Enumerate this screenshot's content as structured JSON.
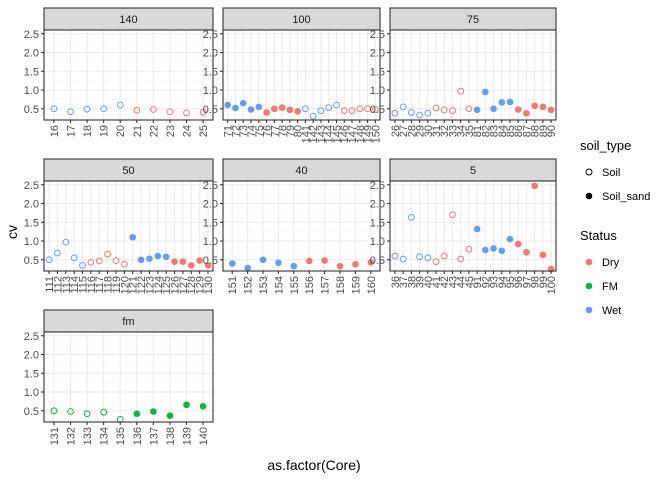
{
  "chart_data": {
    "type": "scatter",
    "xlabel": "as.factor(Core)",
    "ylabel": "cv",
    "ylim": [
      0.2,
      2.6
    ],
    "y_ticks": [
      "0.5",
      "1.0",
      "1.5",
      "2.0",
      "2.5"
    ],
    "grid": true,
    "legend_placement": "right",
    "legends": [
      {
        "title": "soil_type",
        "items": [
          {
            "label": "Soil",
            "shape": "open-circle"
          },
          {
            "label": "Soil_sand",
            "shape": "filled-circle"
          }
        ]
      },
      {
        "title": "Status",
        "items": [
          {
            "label": "Dry",
            "color": "#F8766D"
          },
          {
            "label": "FM",
            "color": "#00BA38"
          },
          {
            "label": "Wet",
            "color": "#619CFF"
          }
        ]
      }
    ],
    "colors": {
      "Dry": "#F8766D",
      "FM": "#00BA38",
      "Wet": "#619CFF"
    },
    "panels": [
      {
        "title": "140",
        "categories": [
          "16",
          "17",
          "18",
          "19",
          "20",
          "21",
          "22",
          "23",
          "24",
          "25"
        ],
        "points": [
          {
            "x": "16",
            "y": 0.5,
            "status": "Wet",
            "soil": "Soil"
          },
          {
            "x": "17",
            "y": 0.42,
            "status": "Wet",
            "soil": "Soil"
          },
          {
            "x": "18",
            "y": 0.49,
            "status": "Wet",
            "soil": "Soil"
          },
          {
            "x": "19",
            "y": 0.5,
            "status": "Wet",
            "soil": "Soil"
          },
          {
            "x": "20",
            "y": 0.6,
            "status": "Wet",
            "soil": "Soil"
          },
          {
            "x": "21",
            "y": 0.46,
            "status": "Dry",
            "soil": "Soil"
          },
          {
            "x": "22",
            "y": 0.48,
            "status": "Dry",
            "soil": "Soil"
          },
          {
            "x": "23",
            "y": 0.42,
            "status": "Dry",
            "soil": "Soil"
          },
          {
            "x": "24",
            "y": 0.39,
            "status": "Dry",
            "soil": "Soil"
          },
          {
            "x": "25",
            "y": 0.41,
            "status": "Dry",
            "soil": "Soil"
          }
        ]
      },
      {
        "title": "100",
        "categories": [
          "71",
          "72",
          "73",
          "74",
          "75",
          "76",
          "77",
          "78",
          "79",
          "80",
          "141",
          "142",
          "143",
          "144",
          "145",
          "146",
          "147",
          "148",
          "149",
          "150"
        ],
        "points": [
          {
            "x": "71",
            "y": 0.6,
            "status": "Wet",
            "soil": "Soil_sand"
          },
          {
            "x": "72",
            "y": 0.52,
            "status": "Wet",
            "soil": "Soil_sand"
          },
          {
            "x": "73",
            "y": 0.65,
            "status": "Wet",
            "soil": "Soil_sand"
          },
          {
            "x": "74",
            "y": 0.48,
            "status": "Wet",
            "soil": "Soil_sand"
          },
          {
            "x": "75",
            "y": 0.55,
            "status": "Wet",
            "soil": "Soil_sand"
          },
          {
            "x": "76",
            "y": 0.4,
            "status": "Dry",
            "soil": "Soil_sand"
          },
          {
            "x": "77",
            "y": 0.5,
            "status": "Dry",
            "soil": "Soil_sand"
          },
          {
            "x": "78",
            "y": 0.53,
            "status": "Dry",
            "soil": "Soil_sand"
          },
          {
            "x": "79",
            "y": 0.47,
            "status": "Dry",
            "soil": "Soil_sand"
          },
          {
            "x": "80",
            "y": 0.43,
            "status": "Dry",
            "soil": "Soil_sand"
          },
          {
            "x": "141",
            "y": 0.5,
            "status": "Wet",
            "soil": "Soil"
          },
          {
            "x": "142",
            "y": 0.3,
            "status": "Wet",
            "soil": "Soil"
          },
          {
            "x": "143",
            "y": 0.45,
            "status": "Wet",
            "soil": "Soil"
          },
          {
            "x": "144",
            "y": 0.53,
            "status": "Wet",
            "soil": "Soil"
          },
          {
            "x": "145",
            "y": 0.6,
            "status": "Wet",
            "soil": "Soil"
          },
          {
            "x": "146",
            "y": 0.45,
            "status": "Dry",
            "soil": "Soil"
          },
          {
            "x": "147",
            "y": 0.45,
            "status": "Dry",
            "soil": "Soil"
          },
          {
            "x": "148",
            "y": 0.5,
            "status": "Dry",
            "soil": "Soil"
          },
          {
            "x": "149",
            "y": 0.5,
            "status": "Dry",
            "soil": "Soil"
          },
          {
            "x": "150",
            "y": 0.48,
            "status": "Dry",
            "soil": "Soil"
          }
        ]
      },
      {
        "title": "75",
        "categories": [
          "26",
          "27",
          "28",
          "29",
          "30",
          "31",
          "32",
          "33",
          "34",
          "35",
          "81",
          "82",
          "83",
          "84",
          "85",
          "86",
          "87",
          "88",
          "89",
          "90"
        ],
        "points": [
          {
            "x": "26",
            "y": 0.38,
            "status": "Wet",
            "soil": "Soil"
          },
          {
            "x": "27",
            "y": 0.55,
            "status": "Wet",
            "soil": "Soil"
          },
          {
            "x": "28",
            "y": 0.4,
            "status": "Wet",
            "soil": "Soil"
          },
          {
            "x": "29",
            "y": 0.33,
            "status": "Wet",
            "soil": "Soil"
          },
          {
            "x": "30",
            "y": 0.38,
            "status": "Wet",
            "soil": "Soil"
          },
          {
            "x": "31",
            "y": 0.52,
            "status": "Dry",
            "soil": "Soil"
          },
          {
            "x": "32",
            "y": 0.47,
            "status": "Dry",
            "soil": "Soil"
          },
          {
            "x": "33",
            "y": 0.45,
            "status": "Dry",
            "soil": "Soil"
          },
          {
            "x": "34",
            "y": 0.97,
            "status": "Dry",
            "soil": "Soil"
          },
          {
            "x": "35",
            "y": 0.5,
            "status": "Dry",
            "soil": "Soil"
          },
          {
            "x": "81",
            "y": 0.47,
            "status": "Wet",
            "soil": "Soil_sand"
          },
          {
            "x": "82",
            "y": 0.95,
            "status": "Wet",
            "soil": "Soil_sand"
          },
          {
            "x": "83",
            "y": 0.5,
            "status": "Wet",
            "soil": "Soil_sand"
          },
          {
            "x": "84",
            "y": 0.67,
            "status": "Wet",
            "soil": "Soil_sand"
          },
          {
            "x": "85",
            "y": 0.68,
            "status": "Wet",
            "soil": "Soil_sand"
          },
          {
            "x": "86",
            "y": 0.48,
            "status": "Dry",
            "soil": "Soil_sand"
          },
          {
            "x": "87",
            "y": 0.38,
            "status": "Dry",
            "soil": "Soil_sand"
          },
          {
            "x": "88",
            "y": 0.58,
            "status": "Dry",
            "soil": "Soil_sand"
          },
          {
            "x": "89",
            "y": 0.55,
            "status": "Dry",
            "soil": "Soil_sand"
          },
          {
            "x": "90",
            "y": 0.47,
            "status": "Dry",
            "soil": "Soil_sand"
          }
        ]
      },
      {
        "title": "50",
        "categories": [
          "111",
          "112",
          "113",
          "114",
          "115",
          "116",
          "117",
          "118",
          "119",
          "120",
          "121",
          "122",
          "123",
          "124",
          "125",
          "126",
          "127",
          "128",
          "129",
          "130"
        ],
        "points": [
          {
            "x": "111",
            "y": 0.5,
            "status": "Wet",
            "soil": "Soil"
          },
          {
            "x": "112",
            "y": 0.68,
            "status": "Wet",
            "soil": "Soil"
          },
          {
            "x": "113",
            "y": 0.97,
            "status": "Wet",
            "soil": "Soil"
          },
          {
            "x": "114",
            "y": 0.55,
            "status": "Wet",
            "soil": "Soil"
          },
          {
            "x": "115",
            "y": 0.35,
            "status": "Wet",
            "soil": "Soil"
          },
          {
            "x": "116",
            "y": 0.43,
            "status": "Dry",
            "soil": "Soil"
          },
          {
            "x": "117",
            "y": 0.47,
            "status": "Dry",
            "soil": "Soil"
          },
          {
            "x": "118",
            "y": 0.65,
            "status": "Dry",
            "soil": "Soil"
          },
          {
            "x": "119",
            "y": 0.48,
            "status": "Dry",
            "soil": "Soil"
          },
          {
            "x": "120",
            "y": 0.38,
            "status": "Dry",
            "soil": "Soil"
          },
          {
            "x": "121",
            "y": 1.1,
            "status": "Wet",
            "soil": "Soil_sand"
          },
          {
            "x": "122",
            "y": 0.5,
            "status": "Wet",
            "soil": "Soil_sand"
          },
          {
            "x": "123",
            "y": 0.53,
            "status": "Wet",
            "soil": "Soil_sand"
          },
          {
            "x": "124",
            "y": 0.6,
            "status": "Wet",
            "soil": "Soil_sand"
          },
          {
            "x": "125",
            "y": 0.58,
            "status": "Wet",
            "soil": "Soil_sand"
          },
          {
            "x": "126",
            "y": 0.45,
            "status": "Dry",
            "soil": "Soil_sand"
          },
          {
            "x": "127",
            "y": 0.45,
            "status": "Dry",
            "soil": "Soil_sand"
          },
          {
            "x": "128",
            "y": 0.35,
            "status": "Dry",
            "soil": "Soil_sand"
          },
          {
            "x": "129",
            "y": 0.48,
            "status": "Dry",
            "soil": "Soil_sand"
          },
          {
            "x": "130",
            "y": 0.35,
            "status": "Dry",
            "soil": "Soil_sand"
          }
        ]
      },
      {
        "title": "40",
        "categories": [
          "151",
          "152",
          "153",
          "154",
          "155",
          "156",
          "157",
          "158",
          "159",
          "160"
        ],
        "points": [
          {
            "x": "151",
            "y": 0.4,
            "status": "Wet",
            "soil": "Soil_sand"
          },
          {
            "x": "152",
            "y": 0.28,
            "status": "Wet",
            "soil": "Soil_sand"
          },
          {
            "x": "153",
            "y": 0.5,
            "status": "Wet",
            "soil": "Soil_sand"
          },
          {
            "x": "154",
            "y": 0.42,
            "status": "Wet",
            "soil": "Soil_sand"
          },
          {
            "x": "155",
            "y": 0.33,
            "status": "Wet",
            "soil": "Soil_sand"
          },
          {
            "x": "156",
            "y": 0.47,
            "status": "Dry",
            "soil": "Soil_sand"
          },
          {
            "x": "157",
            "y": 0.48,
            "status": "Dry",
            "soil": "Soil_sand"
          },
          {
            "x": "158",
            "y": 0.33,
            "status": "Dry",
            "soil": "Soil_sand"
          },
          {
            "x": "159",
            "y": 0.38,
            "status": "Dry",
            "soil": "Soil_sand"
          },
          {
            "x": "160",
            "y": 0.43,
            "status": "Dry",
            "soil": "Soil_sand"
          }
        ]
      },
      {
        "title": "5",
        "categories": [
          "36",
          "37",
          "38",
          "39",
          "40",
          "41",
          "42",
          "43",
          "44",
          "45",
          "91",
          "92",
          "93",
          "94",
          "95",
          "96",
          "97",
          "98",
          "99",
          "100"
        ],
        "points": [
          {
            "x": "36",
            "y": 0.6,
            "status": "Wet",
            "soil": "Soil"
          },
          {
            "x": "37",
            "y": 0.52,
            "status": "Wet",
            "soil": "Soil"
          },
          {
            "x": "38",
            "y": 1.63,
            "status": "Wet",
            "soil": "Soil"
          },
          {
            "x": "39",
            "y": 0.58,
            "status": "Wet",
            "soil": "Soil"
          },
          {
            "x": "40",
            "y": 0.55,
            "status": "Wet",
            "soil": "Soil"
          },
          {
            "x": "41",
            "y": 0.45,
            "status": "Dry",
            "soil": "Soil"
          },
          {
            "x": "42",
            "y": 0.6,
            "status": "Dry",
            "soil": "Soil"
          },
          {
            "x": "43",
            "y": 1.7,
            "status": "Dry",
            "soil": "Soil"
          },
          {
            "x": "44",
            "y": 0.52,
            "status": "Dry",
            "soil": "Soil"
          },
          {
            "x": "45",
            "y": 0.78,
            "status": "Dry",
            "soil": "Soil"
          },
          {
            "x": "91",
            "y": 1.32,
            "status": "Wet",
            "soil": "Soil_sand"
          },
          {
            "x": "92",
            "y": 0.76,
            "status": "Wet",
            "soil": "Soil_sand"
          },
          {
            "x": "93",
            "y": 0.8,
            "status": "Wet",
            "soil": "Soil_sand"
          },
          {
            "x": "94",
            "y": 0.74,
            "status": "Wet",
            "soil": "Soil_sand"
          },
          {
            "x": "95",
            "y": 1.05,
            "status": "Wet",
            "soil": "Soil_sand"
          },
          {
            "x": "96",
            "y": 0.92,
            "status": "Dry",
            "soil": "Soil_sand"
          },
          {
            "x": "97",
            "y": 0.7,
            "status": "Dry",
            "soil": "Soil_sand"
          },
          {
            "x": "98",
            "y": 2.47,
            "status": "Dry",
            "soil": "Soil_sand"
          },
          {
            "x": "99",
            "y": 0.63,
            "status": "Dry",
            "soil": "Soil_sand"
          },
          {
            "x": "100",
            "y": 0.25,
            "status": "Dry",
            "soil": "Soil_sand"
          }
        ]
      },
      {
        "title": "fm",
        "categories": [
          "131",
          "132",
          "133",
          "134",
          "135",
          "136",
          "137",
          "138",
          "139",
          "140"
        ],
        "points": [
          {
            "x": "131",
            "y": 0.5,
            "status": "FM",
            "soil": "Soil"
          },
          {
            "x": "132",
            "y": 0.48,
            "status": "FM",
            "soil": "Soil"
          },
          {
            "x": "133",
            "y": 0.42,
            "status": "FM",
            "soil": "Soil"
          },
          {
            "x": "134",
            "y": 0.46,
            "status": "FM",
            "soil": "Soil"
          },
          {
            "x": "135",
            "y": 0.27,
            "status": "FM",
            "soil": "Soil"
          },
          {
            "x": "136",
            "y": 0.42,
            "status": "FM",
            "soil": "Soil_sand"
          },
          {
            "x": "137",
            "y": 0.48,
            "status": "FM",
            "soil": "Soil_sand"
          },
          {
            "x": "138",
            "y": 0.37,
            "status": "FM",
            "soil": "Soil_sand"
          },
          {
            "x": "139",
            "y": 0.66,
            "status": "FM",
            "soil": "Soil_sand"
          },
          {
            "x": "140",
            "y": 0.62,
            "status": "FM",
            "soil": "Soil_sand"
          }
        ]
      }
    ]
  }
}
